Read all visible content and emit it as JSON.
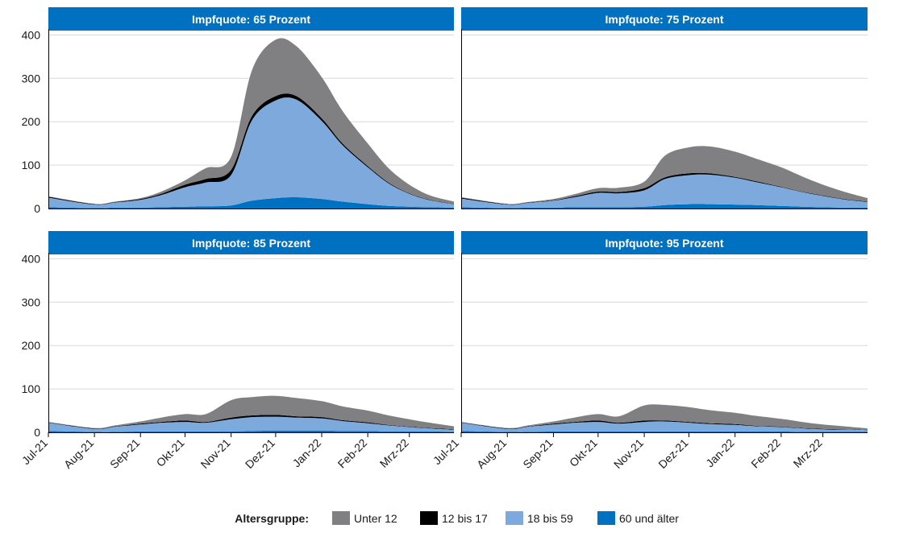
{
  "chart_data": {
    "type": "area",
    "stacked": true,
    "x": [
      "2021-07-01",
      "2021-08-01",
      "2021-08-15",
      "2021-09-01",
      "2021-09-15",
      "2021-10-01",
      "2021-10-15",
      "2021-11-01",
      "2021-11-15",
      "2021-12-01",
      "2021-12-15",
      "2022-01-01",
      "2022-01-15",
      "2022-02-01",
      "2022-02-15",
      "2022-03-01",
      "2022-03-15",
      "2022-03-31"
    ],
    "x_ticks": [
      "Jul-21",
      "Aug-21",
      "Sep-21",
      "Okt-21",
      "Nov-21",
      "Dez-21",
      "Jan-22",
      "Feb-22",
      "Mrz-22"
    ],
    "x_ticks_right_extra": "Jul-21",
    "y_ticks": [
      0,
      100,
      200,
      300,
      400
    ],
    "ylim": [
      0,
      410
    ],
    "gridlines": true,
    "legend": {
      "title": "Altersgruppe:",
      "position": "bottom",
      "entries": [
        {
          "label": "Unter 12",
          "color": "#808083"
        },
        {
          "label": "12 bis 17",
          "color": "#000000"
        },
        {
          "label": "18 bis 59",
          "color": "#7ea9dc"
        },
        {
          "label": "60 und älter",
          "color": "#0070c0"
        }
      ]
    },
    "panels": [
      {
        "title": "Impfquote: 65 Prozent",
        "series": [
          {
            "name": "60 und älter",
            "values": [
              3,
              1,
              2,
              2,
              3,
              4,
              5,
              7,
              18,
              24,
              26,
              22,
              16,
              10,
              6,
              4,
              3,
              2
            ]
          },
          {
            "name": "18 bis 59",
            "values": [
              22,
              8,
              12,
              18,
              28,
              45,
              55,
              70,
              185,
              225,
              225,
              180,
              130,
              85,
              52,
              30,
              16,
              8
            ]
          },
          {
            "name": "12 bis 17",
            "values": [
              2,
              1,
              1,
              2,
              3,
              6,
              8,
              12,
              10,
              10,
              8,
              6,
              4,
              3,
              2,
              1,
              1,
              1
            ]
          },
          {
            "name": "Unter 12",
            "values": [
              1,
              1,
              1,
              2,
              5,
              10,
              25,
              30,
              105,
              130,
              115,
              95,
              75,
              52,
              33,
              20,
              10,
              5
            ]
          }
        ]
      },
      {
        "title": "Impfquote: 75 Prozent",
        "series": [
          {
            "name": "60 und älter",
            "values": [
              3,
              1,
              2,
              2,
              3,
              3,
              3,
              4,
              8,
              10,
              10,
              9,
              8,
              6,
              4,
              3,
              2,
              2
            ]
          },
          {
            "name": "18 bis 59",
            "values": [
              20,
              8,
              11,
              16,
              23,
              33,
              32,
              38,
              60,
              67,
              68,
              62,
              53,
              43,
              34,
              26,
              19,
              13
            ]
          },
          {
            "name": "12 bis 17",
            "values": [
              2,
              1,
              1,
              1,
              2,
              3,
              3,
              5,
              4,
              4,
              3,
              2,
              2,
              1,
              1,
              1,
              1,
              1
            ]
          },
          {
            "name": "Unter 12",
            "values": [
              1,
              1,
              1,
              3,
              5,
              8,
              10,
              15,
              50,
              60,
              62,
              58,
              52,
              45,
              35,
              25,
              17,
              8
            ]
          }
        ]
      },
      {
        "title": "Impfquote: 85 Prozent",
        "series": [
          {
            "name": "60 und älter",
            "values": [
              3,
              1,
              1,
              2,
              2,
              2,
              2,
              2,
              3,
              4,
              4,
              4,
              3,
              3,
              2,
              2,
              2,
              1
            ]
          },
          {
            "name": "18 bis 59",
            "values": [
              19,
              7,
              12,
              16,
              20,
              22,
              20,
              28,
              32,
              32,
              30,
              28,
              23,
              18,
              14,
              10,
              7,
              5
            ]
          },
          {
            "name": "12 bis 17",
            "values": [
              1,
              1,
              1,
              2,
              2,
              3,
              2,
              4,
              4,
              4,
              3,
              3,
              2,
              2,
              1,
              1,
              1,
              1
            ]
          },
          {
            "name": "Unter 12",
            "values": [
              1,
              1,
              2,
              5,
              10,
              15,
              18,
              40,
              42,
              44,
              42,
              37,
              32,
              27,
              22,
              17,
              12,
              7
            ]
          }
        ]
      },
      {
        "title": "Impfquote: 95 Prozent",
        "series": [
          {
            "name": "60 und älter",
            "values": [
              3,
              1,
              1,
              2,
              2,
              2,
              2,
              2,
              2,
              2,
              2,
              2,
              2,
              2,
              1,
              1,
              1,
              1
            ]
          },
          {
            "name": "18 bis 59",
            "values": [
              19,
              7,
              12,
              16,
              20,
              22,
              18,
              22,
              23,
              20,
              17,
              15,
              12,
              10,
              8,
              6,
              5,
              4
            ]
          },
          {
            "name": "12 bis 17",
            "values": [
              1,
              1,
              1,
              2,
              2,
              3,
              2,
              3,
              2,
              2,
              2,
              2,
              1,
              1,
              1,
              1,
              1,
              1
            ]
          },
          {
            "name": "Unter 12",
            "values": [
              1,
              1,
              2,
              5,
              10,
              15,
              15,
              35,
              36,
              34,
              30,
              26,
              23,
              18,
              14,
              10,
              7,
              3
            ]
          }
        ]
      }
    ]
  }
}
